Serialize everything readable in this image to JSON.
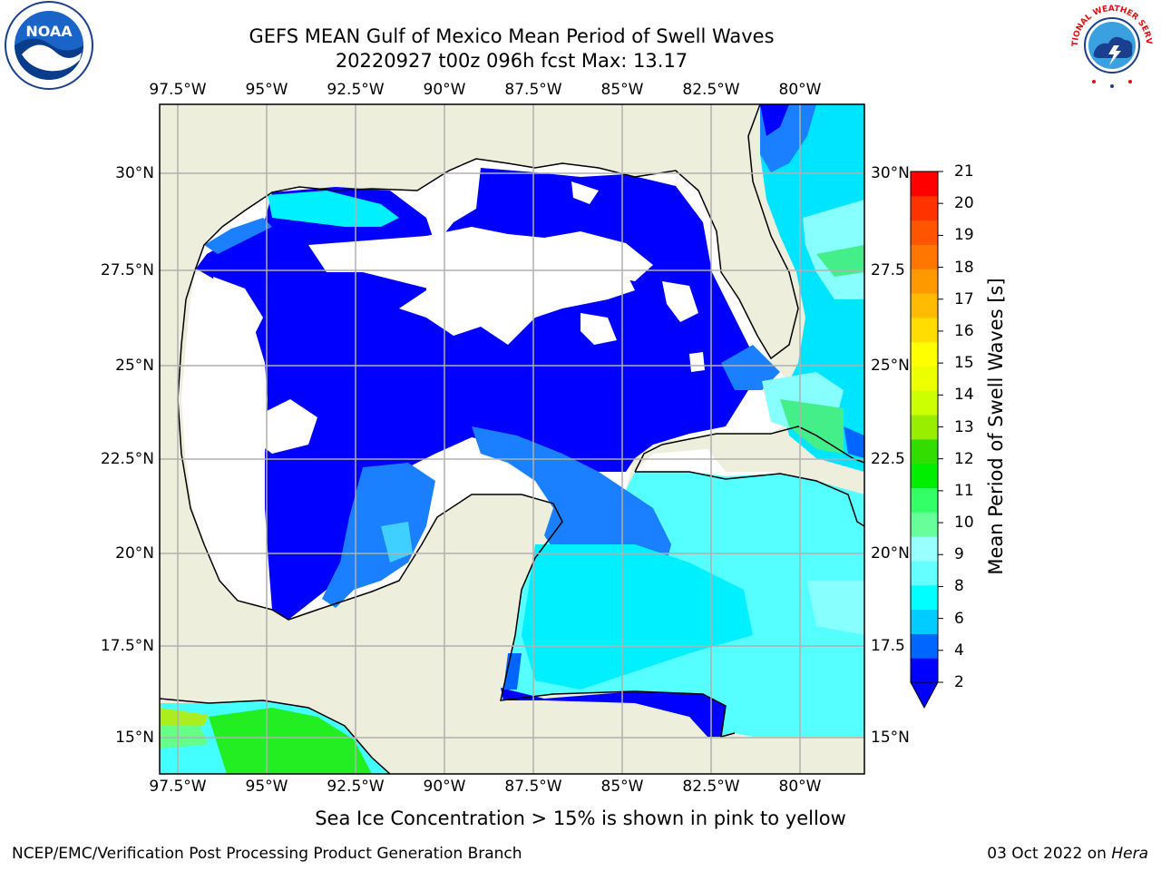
{
  "header": {
    "title": "GEFS MEAN Gulf of Mexico Mean Period of Swell Waves",
    "subtitle": "20220927 t00z 096h fcst   Max: 13.17"
  },
  "map": {
    "projection": "lat-lon",
    "lon_range": [
      -98.0,
      -81.5
    ],
    "lat_range": [
      14.0,
      31.5
    ],
    "lon_ticks": [
      "97.5°W",
      "95°W",
      "92.5°W",
      "90°W",
      "87.5°W",
      "85°W",
      "82.5°W",
      "80°W"
    ],
    "lat_ticks_left": [
      "15°N",
      "17.5°N",
      "20°N",
      "22.5°N",
      "25°N",
      "27.5°N",
      "30°N"
    ],
    "lat_ticks_right": [
      "15°N",
      "17.5",
      "20°N",
      "22.5",
      "25°N",
      "27.5",
      "30°N"
    ],
    "grid": true,
    "colors": {
      "land": "#eeeedd",
      "no_data": "#ffffff",
      "coast": "#000000",
      "grid": "#b0b0b0"
    }
  },
  "colorbar": {
    "label": "Mean Period of Swell Waves [s]",
    "ticks": [
      "2",
      "4",
      "6",
      "8",
      "9",
      "10",
      "11",
      "12",
      "13",
      "14",
      "15",
      "16",
      "17",
      "18",
      "19",
      "20",
      "21"
    ],
    "colors": [
      "#0000ff",
      "#0066ff",
      "#00ccff",
      "#00ffff",
      "#66ffff",
      "#99ffff",
      "#66ff99",
      "#33ff66",
      "#00ee00",
      "#33dd00",
      "#99ee00",
      "#ccff00",
      "#eeff00",
      "#ffff00",
      "#ffdd00",
      "#ffbb00",
      "#ff9900",
      "#ff7700",
      "#ff5500",
      "#ff3300",
      "#ff0000"
    ],
    "extend_min_color": "#0000ff"
  },
  "annotation": "Sea Ice Concentration > 15% is shown in pink to yellow",
  "footer": {
    "left": "NCEP/EMC/Verification Post Processing Product Generation Branch",
    "right_date": "03 Oct 2022 on ",
    "right_machine": "Hera"
  },
  "logos": {
    "left_text": "NOAA",
    "right_text": "NATIONAL WEATHER SERVICE"
  }
}
